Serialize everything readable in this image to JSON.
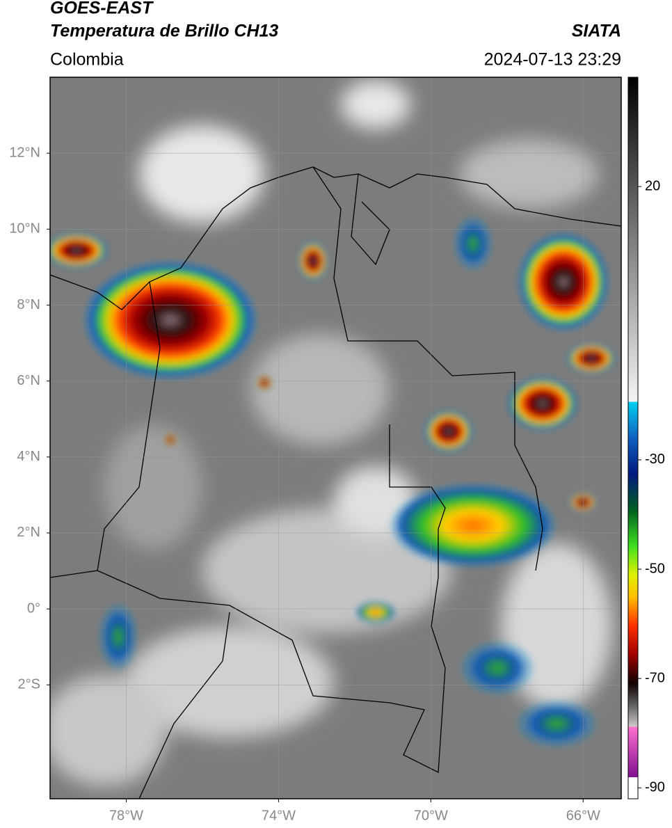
{
  "header": {
    "title": "GOES-EAST",
    "subtitle": "Temperatura de Brillo CH13",
    "source": "SIATA",
    "region": "Colombia",
    "datetime": "2024-07-13 23:29"
  },
  "map": {
    "lon_range": [
      -80,
      -65
    ],
    "lat_range": [
      -5,
      14
    ],
    "grid": true,
    "lon_ticks": [
      {
        "value": -78,
        "label": "78°W"
      },
      {
        "value": -74,
        "label": "74°W"
      },
      {
        "value": -70,
        "label": "70°W"
      },
      {
        "value": -66,
        "label": "66°W"
      }
    ],
    "lat_ticks": [
      {
        "value": 12,
        "label": "12°N"
      },
      {
        "value": 10,
        "label": "10°N"
      },
      {
        "value": 8,
        "label": "8°N"
      },
      {
        "value": 6,
        "label": "6°N"
      },
      {
        "value": 4,
        "label": "4°N"
      },
      {
        "value": 2,
        "label": "2°N"
      },
      {
        "value": 0,
        "label": "0°"
      },
      {
        "value": -2,
        "label": "2°S"
      }
    ]
  },
  "colorbar": {
    "range": [
      -92,
      40
    ],
    "ticks": [
      20,
      -30,
      -50,
      -70,
      -90
    ]
  }
}
